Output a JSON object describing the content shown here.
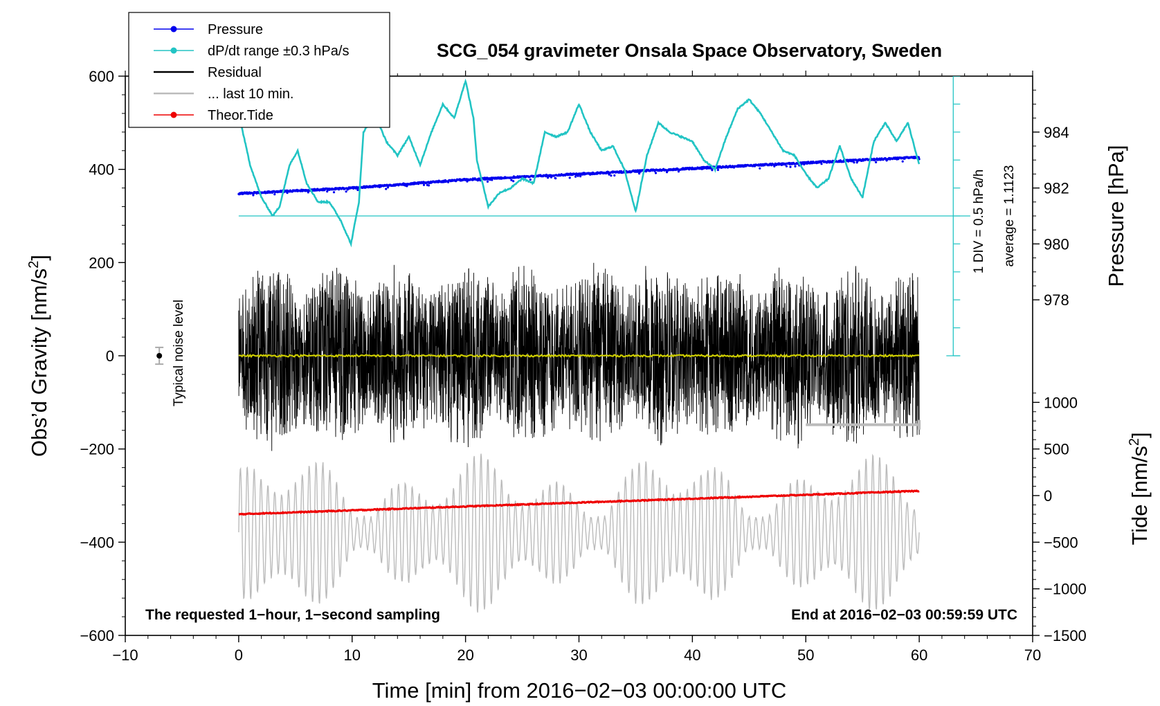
{
  "chart_data": {
    "type": "line",
    "title": "SCG_054 gravimeter Onsala Space Observatory, Sweden",
    "xlabel": "Time [min] from 2016−02−03 00:00:00 UTC",
    "ylabel_left": "Obs’d Gravity [nm/s",
    "ylabel_left_sup": "2",
    "ylabel_left_close": "]",
    "ylabel_right_pressure": "Pressure [hPa]",
    "ylabel_right_tide": "Tide [nm/s",
    "ylabel_right_tide_sup": "2",
    "ylabel_right_tide_close": "]",
    "xlim": [
      -10,
      70
    ],
    "ylim_left": [
      -600,
      600
    ],
    "xticks": [
      {
        "v": -10,
        "label": "−10"
      },
      {
        "v": 0,
        "label": "0"
      },
      {
        "v": 10,
        "label": "10"
      },
      {
        "v": 20,
        "label": "20"
      },
      {
        "v": 30,
        "label": "30"
      },
      {
        "v": 40,
        "label": "40"
      },
      {
        "v": 50,
        "label": "50"
      },
      {
        "v": 60,
        "label": "60"
      },
      {
        "v": 70,
        "label": "70"
      }
    ],
    "yticks_left": [
      {
        "v": 600,
        "label": "600"
      },
      {
        "v": 400,
        "label": "400"
      },
      {
        "v": 200,
        "label": "200"
      },
      {
        "v": 0,
        "label": "0"
      },
      {
        "v": -200,
        "label": "−200"
      },
      {
        "v": -400,
        "label": "−400"
      },
      {
        "v": -600,
        "label": "−600"
      }
    ],
    "pressure_axis": {
      "ticks": [
        {
          "v": 984,
          "label": "984"
        },
        {
          "v": 982,
          "label": "982"
        },
        {
          "v": 980,
          "label": "980"
        },
        {
          "v": 978,
          "label": "978"
        }
      ],
      "gravity_at_984": 480,
      "gravity_per_hpa": 60
    },
    "tide_axis": {
      "ticks": [
        {
          "v": 1000,
          "label": "1000"
        },
        {
          "v": 500,
          "label": "500"
        },
        {
          "v": 0,
          "label": "0"
        },
        {
          "v": -500,
          "label": "−500"
        },
        {
          "v": -1000,
          "label": "−1000"
        },
        {
          "v": -1500,
          "label": "−1500"
        }
      ],
      "gravity_at_0": -300,
      "gravity_per_unit": 0.2
    },
    "legend": [
      {
        "label": "Pressure",
        "color": "#0000ee",
        "marker": true
      },
      {
        "label": "dP/dt range ±0.3 hPa/s",
        "color": "#22c4c4",
        "marker": true
      },
      {
        "label": "Residual",
        "color": "#000000",
        "marker": false
      },
      {
        "label": "... last 10 min.",
        "color": "#bbbbbb",
        "marker": false
      },
      {
        "label": "Theor.Tide",
        "color": "#ee0000",
        "marker": true
      }
    ],
    "series": [
      {
        "name": "Pressure",
        "color": "#0000ee",
        "units": "hPa",
        "x": [
          0,
          10,
          20,
          30,
          40,
          50,
          60
        ],
        "values": [
          981.8,
          982.0,
          982.3,
          982.5,
          982.7,
          982.9,
          983.1
        ]
      },
      {
        "name": "dP/dt",
        "color": "#22c4c4",
        "units": "gravity-axis units",
        "x": [
          0,
          1,
          2,
          3,
          3.6,
          4.5,
          5.2,
          6,
          7,
          8,
          9,
          9.9,
          10.6,
          11,
          12,
          13,
          14,
          15,
          16,
          17,
          18,
          19,
          20,
          20.7,
          21,
          22,
          23,
          24,
          25,
          26,
          27,
          28,
          29,
          30,
          31,
          32,
          33,
          34,
          35,
          36,
          37,
          38,
          39,
          40,
          41,
          42,
          43,
          44,
          45,
          46,
          47,
          48,
          49,
          50,
          51,
          52,
          53,
          54,
          55,
          56,
          57,
          58,
          59,
          60
        ],
        "values": [
          520,
          410,
          340,
          300,
          320,
          410,
          440,
          370,
          330,
          330,
          290,
          240,
          330,
          480,
          520,
          460,
          430,
          470,
          410,
          480,
          540,
          510,
          590,
          510,
          420,
          320,
          350,
          360,
          380,
          370,
          480,
          470,
          480,
          540,
          480,
          440,
          450,
          400,
          310,
          430,
          500,
          480,
          470,
          460,
          420,
          400,
          470,
          530,
          550,
          520,
          480,
          440,
          430,
          390,
          360,
          380,
          450,
          380,
          340,
          460,
          500,
          460,
          500,
          410
        ]
      },
      {
        "name": "Theor.Tide",
        "color": "#ee0000",
        "units": "nm/s^2",
        "x": [
          0,
          60
        ],
        "values": [
          -200,
          50
        ]
      },
      {
        "name": "Residual",
        "color": "#000000",
        "units": "nm/s^2",
        "x_range": [
          0,
          60
        ],
        "center": 0,
        "amplitude_peak": 230
      },
      {
        "name": "Residual mean",
        "color": "#cccc00",
        "units": "nm/s^2",
        "x_range": [
          0,
          60
        ],
        "value": 0
      },
      {
        "name": "Gravity (gray)",
        "color": "#bbbbbb",
        "units": "nm/s^2",
        "x_range": [
          0,
          60
        ],
        "center": -380,
        "amplitude_peak": 170
      }
    ],
    "annotations": {
      "pressure_scale_line1": "1 DIV = 0.5 hPa/h",
      "pressure_scale_line2": "average = 1.1123",
      "noise_label": "Typical noise level",
      "bottom_left": "The requested 1−hour, 1−second sampling",
      "bottom_right": "End at 2016−02−03 00:59:59 UTC",
      "last_10min_range": [
        50,
        60
      ],
      "last_10min_y": -148,
      "noise_x": -7,
      "noise_y": 0,
      "noise_half_range": 18,
      "dpdt_baseline_y": 300,
      "dpdt_axis_x": 63
    }
  }
}
